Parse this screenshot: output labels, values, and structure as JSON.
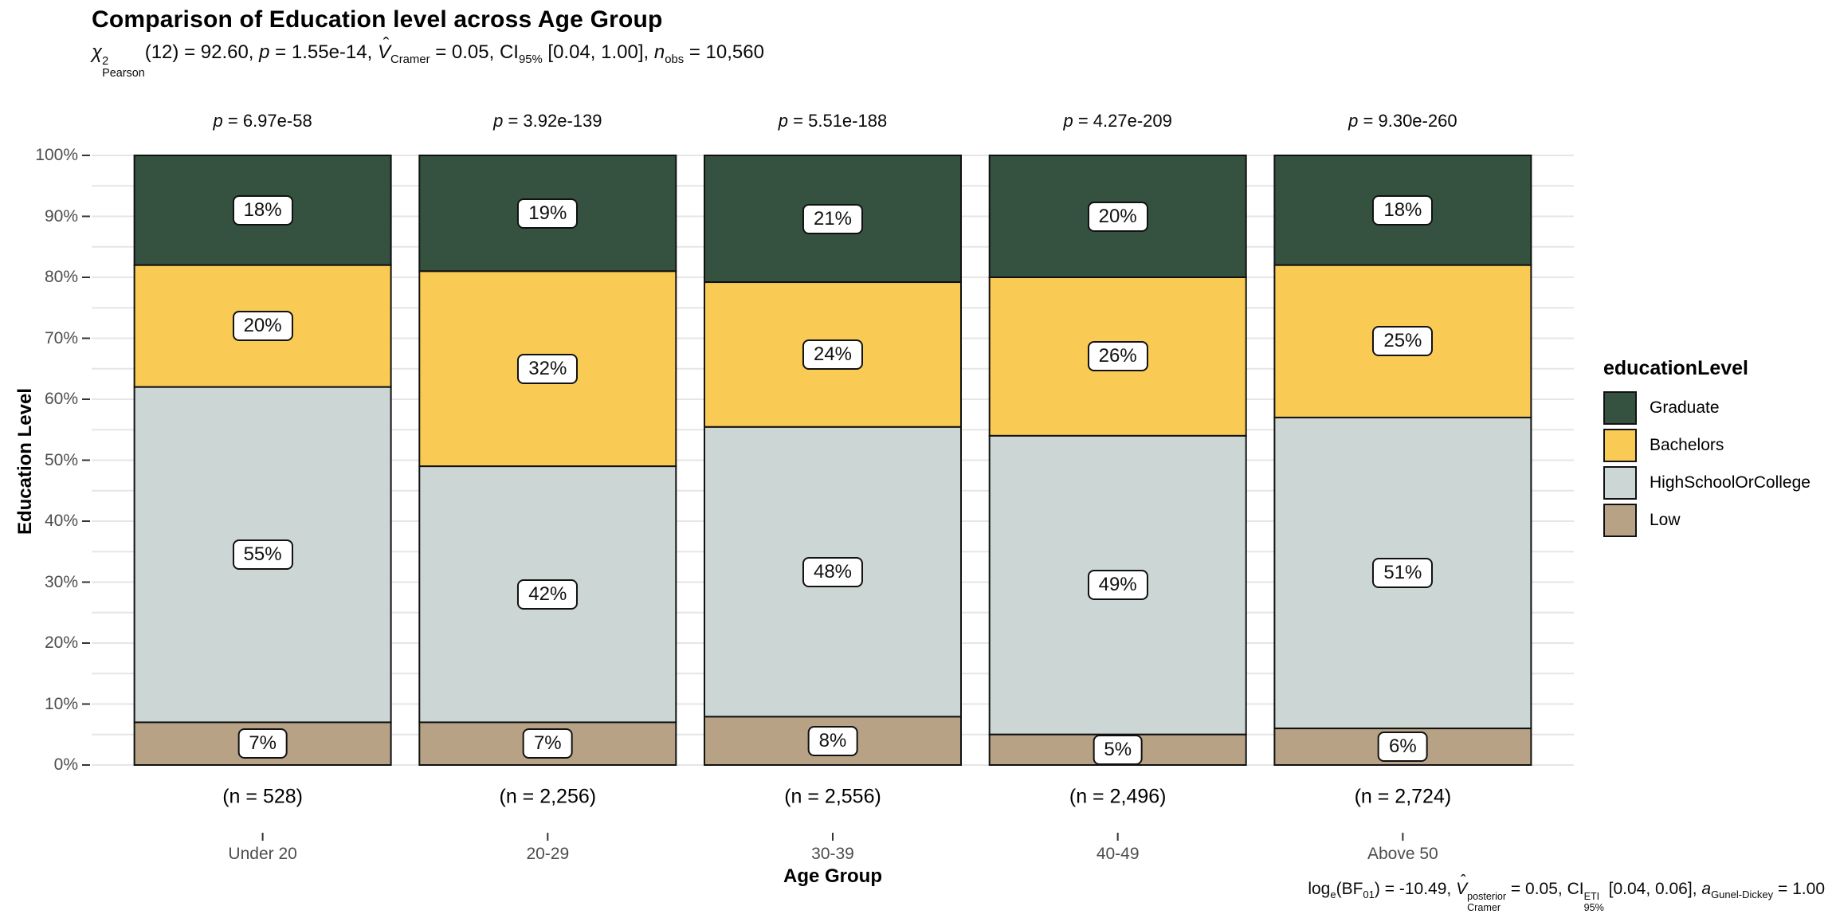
{
  "title": "Comparison of Education level across Age Group",
  "subtitle": {
    "chi": "χ",
    "chi_sup": "2",
    "chi_sub": "Pearson",
    "chi_rest": "(12) = 92.60, ",
    "p_sym": "p",
    "p_rest": " = 1.55e-14, ",
    "v_hat": "ˆ",
    "v_sym": "V",
    "v_sub": "Cramer",
    "v_rest": " = 0.05, ",
    "ci_sym": "CI",
    "ci_sub": "95%",
    "ci_rest": " [0.04, 1.00], ",
    "n_sym": "n",
    "n_sub": "obs",
    "n_rest": " = 10,560"
  },
  "caption": {
    "log_sym": "log",
    "log_sub": "e",
    "bf_open": "(BF",
    "bf_sub": "01",
    "bf_close": ")",
    "bf_rest": " = -10.49, ",
    "v_hat": "ˆ",
    "v_sym": "V",
    "v_sup": "posterior",
    "v_sub": "Cramer",
    "v_rest": " = 0.05, ",
    "ci_sym": "CI",
    "ci_sup": "ETI",
    "ci_sub": "95%",
    "ci_rest": " [0.04, 0.06], ",
    "a_sym": "a",
    "a_sub": "Gunel-Dickey",
    "a_rest": " = 1.00"
  },
  "y_axis": {
    "label": "Education Level",
    "ticks": [
      "0%",
      "10%",
      "20%",
      "30%",
      "40%",
      "50%",
      "60%",
      "70%",
      "80%",
      "90%",
      "100%"
    ]
  },
  "x_axis": {
    "label": "Age Group"
  },
  "legend": {
    "title": "educationLevel"
  },
  "chart_data": {
    "type": "bar",
    "stacked": true,
    "stack_order": "top-to-bottom",
    "title": "Comparison of Education level across Age Group",
    "categories": [
      "Under 20",
      "20-29",
      "30-39",
      "40-49",
      "Above 50"
    ],
    "n_labels": [
      "(n = 528)",
      "(n = 2,256)",
      "(n = 2,556)",
      "(n = 2,496)",
      "(n = 2,724)"
    ],
    "p_symbol": "p",
    "p_eq": " = ",
    "p_values": [
      "6.97e-58",
      "3.92e-139",
      "5.51e-188",
      "4.27e-209",
      "9.30e-260"
    ],
    "value_suffix": "%",
    "ylim": [
      0,
      100
    ],
    "grid_step_percent": 5,
    "legend_position": "right",
    "series": [
      {
        "name": "Graduate",
        "color": "#355240",
        "values": [
          18,
          19,
          21,
          20,
          18
        ]
      },
      {
        "name": "Bachelors",
        "color": "#F9CB55",
        "values": [
          20,
          32,
          24,
          26,
          25
        ]
      },
      {
        "name": "HighSchoolOrCollege",
        "color": "#CCD6D5",
        "values": [
          55,
          42,
          48,
          49,
          51
        ]
      },
      {
        "name": "Low",
        "color": "#B8A286",
        "values": [
          7,
          7,
          8,
          5,
          6
        ]
      }
    ],
    "colors": {
      "segment_border": "#111111",
      "gridline": "#E6E6E6",
      "tick": "#333333",
      "axis_text": "#4D4D4D"
    }
  }
}
